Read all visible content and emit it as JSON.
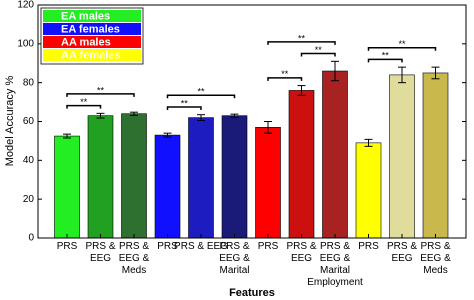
{
  "chart_data": {
    "type": "bar",
    "y_label": "Model Accuracy %",
    "x_label": "Features",
    "ylim": [
      0,
      120
    ],
    "yticks": [
      0,
      20,
      40,
      60,
      80,
      100,
      120
    ],
    "legend": "upper left",
    "series": [
      {
        "name": "EA males",
        "color": "#22ee22",
        "categories": [
          [
            "PRS"
          ],
          [
            "PRS &",
            "EEG"
          ],
          [
            "PRS &",
            "EEG &",
            "Meds"
          ]
        ],
        "colors": [
          "#22ee22",
          "#22a022",
          "#2e7030"
        ],
        "values": [
          52.5,
          63,
          64
        ],
        "errors": [
          1,
          1.2,
          0.8
        ],
        "brackets": [
          {
            "label": "**",
            "bars": [
              0,
              1
            ]
          },
          {
            "label": "**",
            "bars": [
              0,
              2
            ]
          }
        ]
      },
      {
        "name": "EA females",
        "color": "#1010ff",
        "categories": [
          [
            "PRS"
          ],
          [
            "PRS & EEG"
          ],
          [
            "PRS &",
            "EEG &",
            "Marital"
          ]
        ],
        "colors": [
          "#1010ff",
          "#1c1cc0",
          "#1a1a78"
        ],
        "values": [
          53,
          62,
          63
        ],
        "errors": [
          1,
          1.5,
          0.8
        ],
        "brackets": [
          {
            "label": "**",
            "bars": [
              0,
              1
            ]
          },
          {
            "label": "**",
            "bars": [
              0,
              2
            ]
          }
        ]
      },
      {
        "name": "AA males",
        "color": "#ff0000",
        "categories": [
          [
            "PRS"
          ],
          [
            "PRS &",
            "EEG"
          ],
          [
            "PRS &",
            "EEG &",
            "Marital",
            "Employment"
          ]
        ],
        "colors": [
          "#ff0000",
          "#cc1010",
          "#a82222"
        ],
        "values": [
          57,
          76,
          86
        ],
        "errors": [
          3,
          2.5,
          5
        ],
        "brackets": [
          {
            "label": "**",
            "bars": [
              0,
              1
            ]
          },
          {
            "label": "**",
            "bars": [
              1,
              2
            ]
          },
          {
            "label": "**",
            "bars": [
              0,
              2
            ]
          }
        ]
      },
      {
        "name": "AA females",
        "color": "#ffff00",
        "categories": [
          [
            "PRS"
          ],
          [
            "PRS &",
            "EEG"
          ],
          [
            "PRS &",
            "EEG &",
            "Meds"
          ]
        ],
        "colors": [
          "#ffff00",
          "#e0dc9c",
          "#c9b84c"
        ],
        "values": [
          49,
          84,
          85
        ],
        "errors": [
          1.8,
          4,
          3
        ],
        "brackets": [
          {
            "label": "**",
            "bars": [
              0,
              1
            ]
          },
          {
            "label": "**",
            "bars": [
              0,
              2
            ]
          }
        ]
      }
    ]
  }
}
